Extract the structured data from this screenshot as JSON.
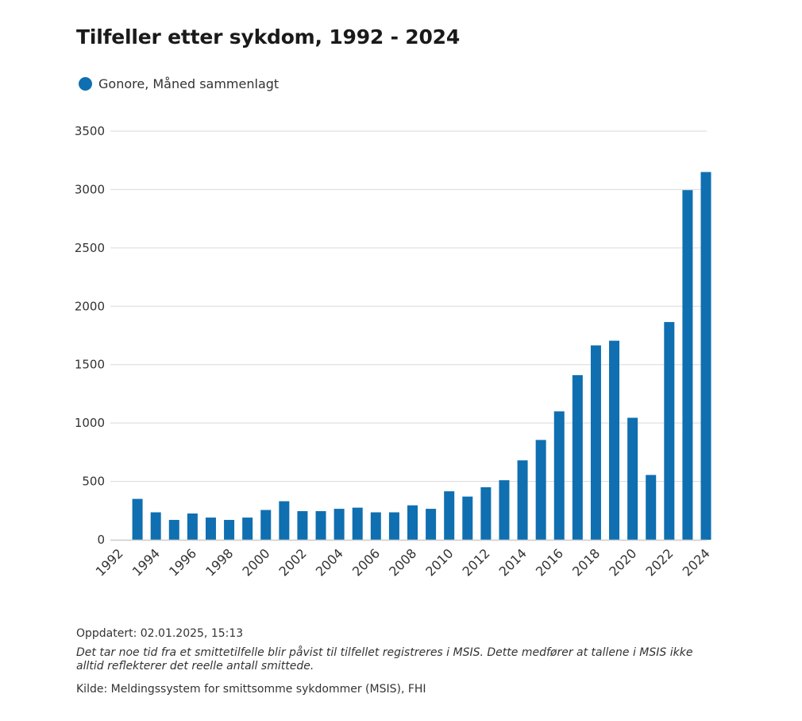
{
  "title": "Tilfeller etter sykdom, 1992 - 2024",
  "legend": {
    "label": "Gonore, Måned sammenlagt"
  },
  "colors": {
    "bar": "#0f6fb0",
    "grid": "#d9d9d9",
    "axis": "#cccccc"
  },
  "chart_data": {
    "type": "bar",
    "title": "Tilfeller etter sykdom, 1992 - 2024",
    "xlabel": "",
    "ylabel": "",
    "ylim": [
      0,
      3500
    ],
    "yticks": [
      0,
      500,
      1000,
      1500,
      2000,
      2500,
      3000,
      3500
    ],
    "grid": true,
    "legend_position": "top-left",
    "categories": [
      "1992",
      "1993",
      "1994",
      "1995",
      "1996",
      "1997",
      "1998",
      "1999",
      "2000",
      "2001",
      "2002",
      "2003",
      "2004",
      "2005",
      "2006",
      "2007",
      "2008",
      "2009",
      "2010",
      "2011",
      "2012",
      "2013",
      "2014",
      "2015",
      "2016",
      "2017",
      "2018",
      "2019",
      "2020",
      "2021",
      "2022",
      "2023",
      "2024"
    ],
    "xtick_labels": [
      "1992",
      "1994",
      "1996",
      "1998",
      "2000",
      "2002",
      "2004",
      "2006",
      "2008",
      "2010",
      "2012",
      "2014",
      "2016",
      "2018",
      "2020",
      "2022",
      "2024"
    ],
    "series": [
      {
        "name": "Gonore, Måned sammenlagt",
        "values": [
          null,
          350,
          235,
          170,
          225,
          190,
          170,
          190,
          255,
          330,
          245,
          245,
          265,
          275,
          235,
          235,
          295,
          265,
          415,
          370,
          450,
          510,
          680,
          855,
          1100,
          1410,
          1665,
          1705,
          1045,
          555,
          1865,
          2995,
          3150
        ]
      }
    ]
  },
  "footer": {
    "updated": "Oppdatert: 02.01.2025, 15:13",
    "note": "Det tar noe tid fra et smittetilfelle blir påvist til tilfellet registreres i MSIS. Dette medfører at tallene i MSIS ikke alltid reflekterer det reelle antall smittede.",
    "source": "Kilde: Meldingssystem for smittsomme sykdommer (MSIS), FHI"
  }
}
